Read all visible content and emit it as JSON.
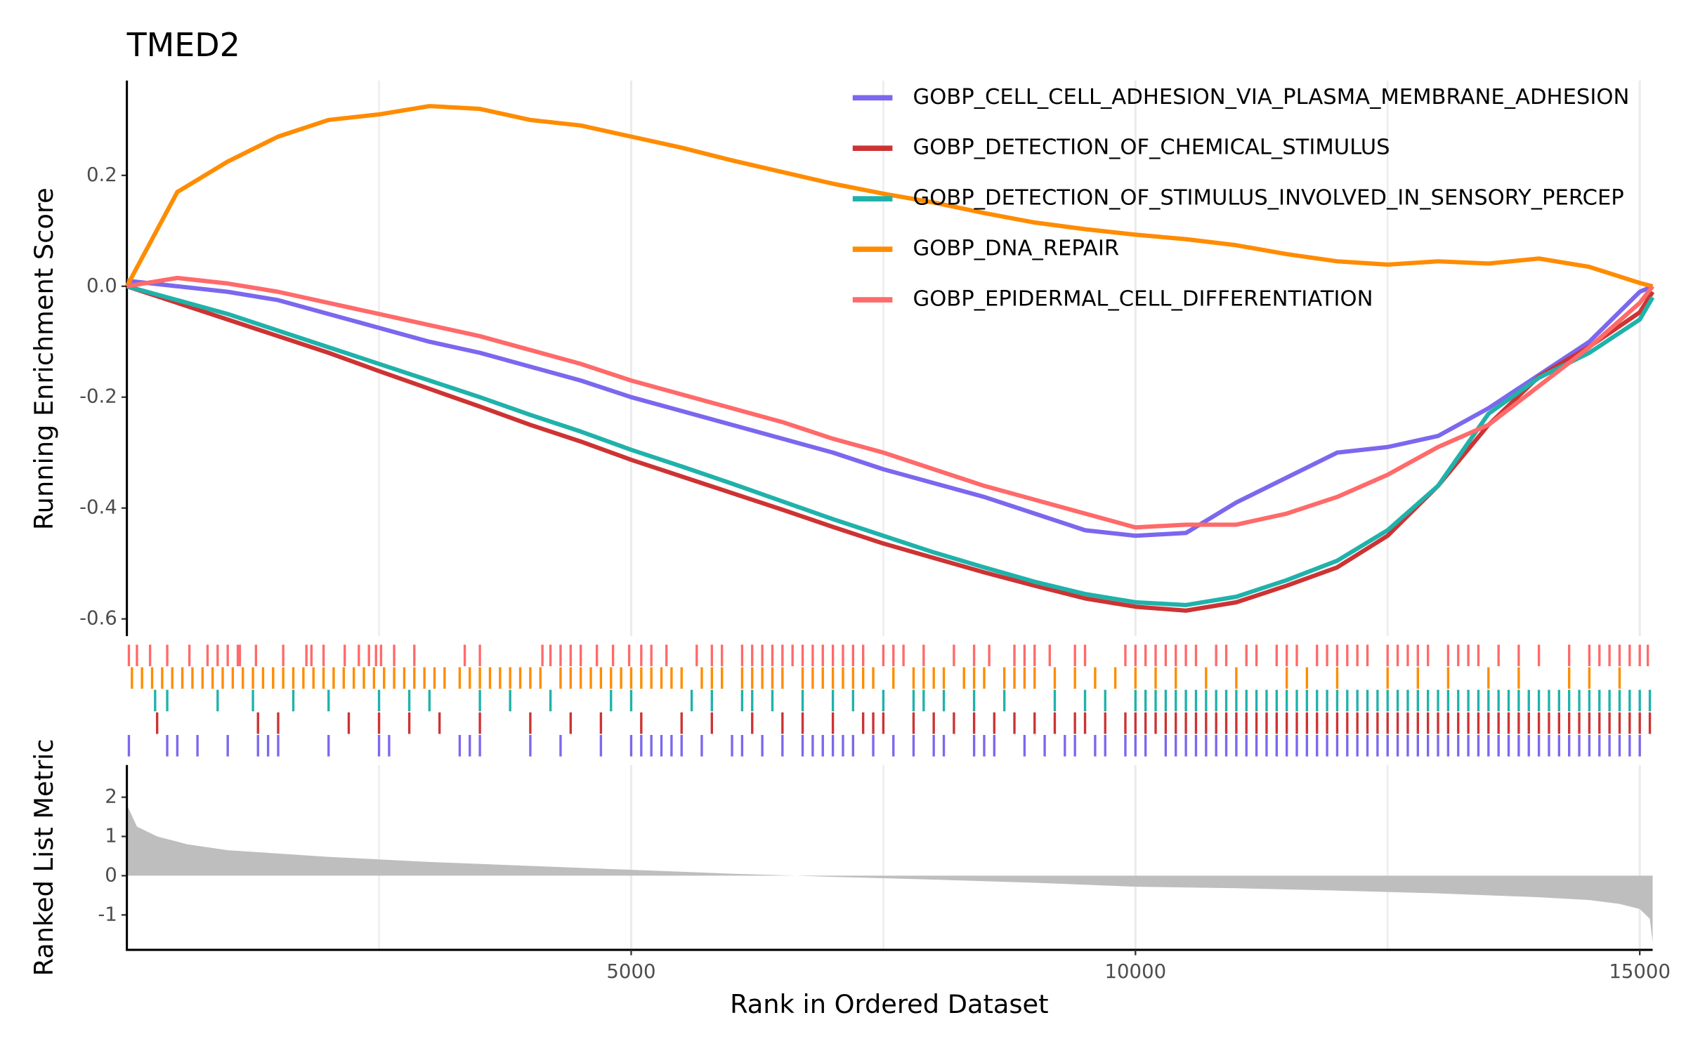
{
  "chart_data": {
    "type": "gsea",
    "title": "TMED2",
    "xlabel": "Rank in Ordered Dataset",
    "ylabel": "Running Enrichment Score",
    "xlim": [
      0,
      15128
    ],
    "xticks": [
      5000,
      10000,
      15000
    ],
    "xminor": [
      2500,
      7500,
      12500
    ],
    "grid": true,
    "ylim": [
      -0.631,
      0.371
    ],
    "yticks": [
      0.2,
      {
        "value": 0,
        "label": "0.0"
      },
      -0.2,
      -0.4,
      -0.6
    ],
    "x": [
      0,
      500,
      1000,
      1500,
      2000,
      2500,
      3000,
      3500,
      4000,
      4500,
      5000,
      5500,
      6000,
      6500,
      7000,
      7500,
      8000,
      8500,
      9000,
      9500,
      10000,
      10500,
      11000,
      11500,
      12000,
      12500,
      13000,
      13500,
      14000,
      14500,
      15000,
      15128
    ],
    "series": [
      {
        "name": "GOBP_CELL_CELL_ADHESION_VIA_PLASMA_MEMBRANE_ADHESION",
        "color": "#7B68EE",
        "values": [
          0.01,
          0,
          -0.01,
          -0.025,
          -0.05,
          -0.075,
          -0.1,
          -0.12,
          -0.145,
          -0.17,
          -0.2,
          -0.225,
          -0.25,
          -0.275,
          -0.3,
          -0.33,
          -0.355,
          -0.38,
          -0.41,
          -0.44,
          -0.45,
          -0.445,
          -0.39,
          -0.345,
          -0.3,
          -0.29,
          -0.27,
          -0.22,
          -0.16,
          -0.1,
          -0.01,
          0
        ],
        "hits": [
          20,
          400,
          500,
          700,
          1000,
          1300,
          1400,
          1500,
          2000,
          2500,
          2600,
          3300,
          3400,
          3500,
          4000,
          4300,
          4700,
          5000,
          5100,
          5200,
          5300,
          5400,
          5500,
          5700,
          6000,
          6100,
          6300,
          6500,
          6700,
          6800,
          6900,
          7000,
          7100,
          7200,
          7400,
          7600,
          7800,
          8000,
          8100,
          8400,
          8500,
          8600,
          8900,
          9100,
          9300,
          9400,
          9600,
          9700,
          9900,
          10000,
          10100,
          10300,
          10400,
          10500,
          10600,
          10700,
          10800,
          10900,
          11000,
          11100,
          11200,
          11300,
          11400,
          11500,
          11600,
          11700,
          11800,
          11900,
          12000,
          12100,
          12200,
          12300,
          12400,
          12500,
          12600,
          12700,
          12800,
          12900,
          13000,
          13100,
          13200,
          13300,
          13400,
          13500,
          13600,
          13700,
          13800,
          13900,
          14000,
          14100,
          14200,
          14300,
          14400,
          14500,
          14600,
          14700,
          14800,
          14900,
          15000
        ]
      },
      {
        "name": "GOBP_DETECTION_OF_CHEMICAL_STIMULUS",
        "color": "#CD3333",
        "values": [
          0,
          -0.03,
          -0.06,
          -0.09,
          -0.12,
          -0.153,
          -0.185,
          -0.217,
          -0.25,
          -0.28,
          -0.313,
          -0.343,
          -0.373,
          -0.403,
          -0.434,
          -0.464,
          -0.49,
          -0.516,
          -0.54,
          -0.563,
          -0.578,
          -0.585,
          -0.57,
          -0.54,
          -0.507,
          -0.45,
          -0.36,
          -0.25,
          -0.163,
          -0.109,
          -0.047,
          -0.01
        ],
        "hits": [
          300,
          1300,
          1500,
          2200,
          2500,
          2800,
          3100,
          3500,
          4000,
          4400,
          4700,
          5100,
          5500,
          5800,
          6200,
          6500,
          6700,
          7000,
          7300,
          7400,
          7500,
          7800,
          8000,
          8200,
          8400,
          8600,
          8800,
          9000,
          9200,
          9400,
          9500,
          9700,
          9900,
          10000,
          10100,
          10200,
          10300,
          10400,
          10500,
          10600,
          10700,
          10800,
          10900,
          11000,
          11100,
          11200,
          11300,
          11400,
          11500,
          11600,
          11700,
          11800,
          11900,
          12000,
          12100,
          12200,
          12300,
          12400,
          12500,
          12600,
          12700,
          12800,
          12900,
          13000,
          13100,
          13200,
          13300,
          13400,
          13500,
          13600,
          13700,
          13800,
          13900,
          14000,
          14100,
          14200,
          14300,
          14400,
          14500,
          14600,
          14700,
          14800,
          14900,
          15000,
          15100
        ]
      },
      {
        "name": "GOBP_DETECTION_OF_STIMULUS_INVOLVED_IN_SENSORY_PERCEP",
        "color": "#20B2AA",
        "values": [
          0,
          -0.025,
          -0.05,
          -0.08,
          -0.11,
          -0.14,
          -0.17,
          -0.2,
          -0.232,
          -0.262,
          -0.295,
          -0.325,
          -0.356,
          -0.388,
          -0.42,
          -0.45,
          -0.48,
          -0.507,
          -0.533,
          -0.555,
          -0.57,
          -0.575,
          -0.56,
          -0.53,
          -0.495,
          -0.44,
          -0.36,
          -0.23,
          -0.165,
          -0.12,
          -0.06,
          -0.02
        ],
        "hits": [
          280,
          400,
          900,
          1250,
          1650,
          2000,
          2500,
          2800,
          3000,
          3500,
          3800,
          4200,
          4800,
          5000,
          5600,
          5800,
          6100,
          6200,
          6400,
          6700,
          7000,
          7200,
          7500,
          7800,
          7900,
          8100,
          8400,
          8700,
          9200,
          9500,
          9700,
          10000,
          10100,
          10200,
          10300,
          10400,
          10500,
          10600,
          10700,
          10800,
          10900,
          11000,
          11100,
          11200,
          11300,
          11400,
          11500,
          11600,
          11700,
          11800,
          11900,
          12000,
          12100,
          12200,
          12300,
          12400,
          12500,
          12600,
          12700,
          12800,
          12900,
          13000,
          13100,
          13200,
          13300,
          13400,
          13500,
          13600,
          13700,
          13800,
          13900,
          14000,
          14100,
          14200,
          14300,
          14400,
          14500,
          14600,
          14700,
          14800,
          14900,
          15000,
          15100
        ]
      },
      {
        "name": "GOBP_DNA_REPAIR",
        "color": "#FF8C00",
        "values": [
          0,
          0.17,
          0.225,
          0.27,
          0.3,
          0.31,
          0.325,
          0.32,
          0.3,
          0.29,
          0.27,
          0.25,
          0.227,
          0.206,
          0.185,
          0.167,
          0.151,
          0.132,
          0.115,
          0.103,
          0.093,
          0.085,
          0.074,
          0.058,
          0.045,
          0.039,
          0.045,
          0.041,
          0.05,
          0.035,
          0.006,
          0
        ],
        "hits": [
          50,
          150,
          250,
          350,
          450,
          550,
          650,
          750,
          850,
          950,
          1050,
          1150,
          1250,
          1350,
          1450,
          1550,
          1650,
          1750,
          1850,
          1950,
          2050,
          2150,
          2250,
          2350,
          2450,
          2550,
          2650,
          2750,
          2850,
          2950,
          3050,
          3150,
          3300,
          3400,
          3500,
          3600,
          3700,
          3800,
          3900,
          4000,
          4100,
          4300,
          4400,
          4500,
          4600,
          4700,
          4800,
          4900,
          5000,
          5100,
          5200,
          5300,
          5400,
          5500,
          5700,
          5800,
          5900,
          6100,
          6200,
          6300,
          6400,
          6500,
          6700,
          6800,
          6900,
          7000,
          7100,
          7200,
          7300,
          7400,
          7600,
          7800,
          7900,
          8000,
          8100,
          8300,
          8400,
          8500,
          8700,
          8800,
          8900,
          9000,
          9200,
          9400,
          9600,
          9800,
          10000,
          10200,
          10400,
          10700,
          11000,
          11500,
          11700,
          12000,
          12500,
          12800,
          13100,
          13500,
          13800,
          14300,
          14500,
          14800
        ]
      },
      {
        "name": "GOBP_EPIDERMAL_CELL_DIFFERENTIATION",
        "color": "#FF6A6A",
        "values": [
          0,
          0.015,
          0.005,
          -0.01,
          -0.03,
          -0.05,
          -0.07,
          -0.09,
          -0.115,
          -0.14,
          -0.17,
          -0.195,
          -0.22,
          -0.245,
          -0.275,
          -0.3,
          -0.33,
          -0.36,
          -0.385,
          -0.41,
          -0.435,
          -0.43,
          -0.43,
          -0.41,
          -0.38,
          -0.34,
          -0.29,
          -0.25,
          -0.18,
          -0.11,
          -0.03,
          0
        ],
        "hits": [
          20,
          100,
          230,
          400,
          620,
          800,
          900,
          1000,
          1100,
          1120,
          1280,
          1550,
          1780,
          1830,
          1950,
          2160,
          2300,
          2400,
          2470,
          2520,
          2650,
          2850,
          3350,
          3500,
          4120,
          4200,
          4300,
          4400,
          4500,
          4660,
          4820,
          4980,
          5100,
          5200,
          5350,
          5650,
          5800,
          5900,
          6100,
          6200,
          6300,
          6400,
          6500,
          6600,
          6700,
          6800,
          6900,
          7000,
          7100,
          7200,
          7300,
          7500,
          7600,
          7700,
          7900,
          8200,
          8400,
          8550,
          8800,
          8900,
          9000,
          9150,
          9400,
          9500,
          9900,
          10000,
          10100,
          10200,
          10300,
          10400,
          10500,
          10600,
          10800,
          10900,
          11100,
          11200,
          11400,
          11500,
          11600,
          11800,
          11900,
          12000,
          12100,
          12200,
          12300,
          12500,
          12600,
          12700,
          12800,
          12900,
          13100,
          13200,
          13300,
          13400,
          13600,
          13800,
          14000,
          14300,
          14500,
          14600,
          14700,
          14800,
          14900,
          15000,
          15080
        ]
      }
    ],
    "ranked_metric": {
      "ylabel": "Ranked List Metric",
      "color": "#BEBEBE",
      "ylim": [
        -1.89,
        2.82
      ],
      "yticks": [
        2,
        1,
        0,
        -1
      ],
      "x": [
        1,
        100,
        300,
        600,
        1000,
        2000,
        3000,
        4000,
        5000,
        6000,
        7000,
        8000,
        9000,
        10000,
        11000,
        12000,
        13000,
        14000,
        14500,
        14800,
        15000,
        15100,
        15128
      ],
      "values": [
        1.8,
        1.25,
        1.0,
        0.8,
        0.65,
        0.48,
        0.35,
        0.25,
        0.15,
        0.05,
        -0.03,
        -0.1,
        -0.18,
        -0.28,
        -0.32,
        -0.38,
        -0.45,
        -0.55,
        -0.62,
        -0.72,
        -0.85,
        -1.1,
        -1.7
      ]
    }
  }
}
